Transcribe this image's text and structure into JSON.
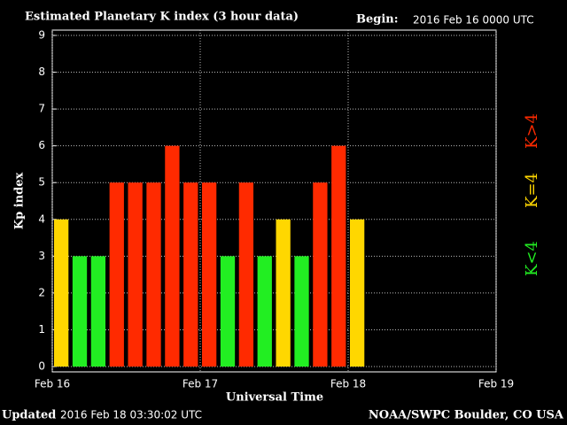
{
  "chart_data": {
    "type": "bar",
    "title": "Estimated Planetary K index (3 hour data)",
    "begin_label": "Begin:",
    "begin_value": "2016 Feb 16 0000 UTC",
    "xlabel": "Universal Time",
    "ylabel": "Kp index",
    "updated_label": "Updated",
    "updated_value": "2016 Feb 18 03:30:02 UTC",
    "credit": "NOAA/SWPC Boulder, CO USA",
    "x": [
      0,
      3,
      6,
      9,
      12,
      15,
      18,
      21,
      24,
      27,
      30,
      33,
      36,
      39,
      42,
      45,
      48
    ],
    "values": [
      4,
      3,
      3,
      5,
      5,
      5,
      6,
      5,
      5,
      3,
      5,
      3,
      4,
      3,
      5,
      6,
      4
    ],
    "colors": [
      "#ffd700",
      "#22ee22",
      "#22ee22",
      "#ff2a00",
      "#ff2a00",
      "#ff2a00",
      "#ff2a00",
      "#ff2a00",
      "#ff2a00",
      "#22ee22",
      "#ff2a00",
      "#22ee22",
      "#ffd700",
      "#22ee22",
      "#ff2a00",
      "#ff2a00",
      "#ffd700"
    ],
    "xlim": [
      0,
      72
    ],
    "xticks": [
      {
        "value": 0,
        "label": "Feb 16"
      },
      {
        "value": 24,
        "label": "Feb 17"
      },
      {
        "value": 48,
        "label": "Feb 18"
      },
      {
        "value": 72,
        "label": "Feb 19"
      }
    ],
    "ylim": [
      0,
      9
    ],
    "yticks": [
      0,
      1,
      2,
      3,
      4,
      5,
      6,
      7,
      8,
      9
    ],
    "grid": true,
    "legend": [
      {
        "name": "K<4",
        "color": "#22ee22"
      },
      {
        "name": "K=4",
        "color": "#ffd700"
      },
      {
        "name": "K>4",
        "color": "#ff2a00"
      }
    ]
  }
}
